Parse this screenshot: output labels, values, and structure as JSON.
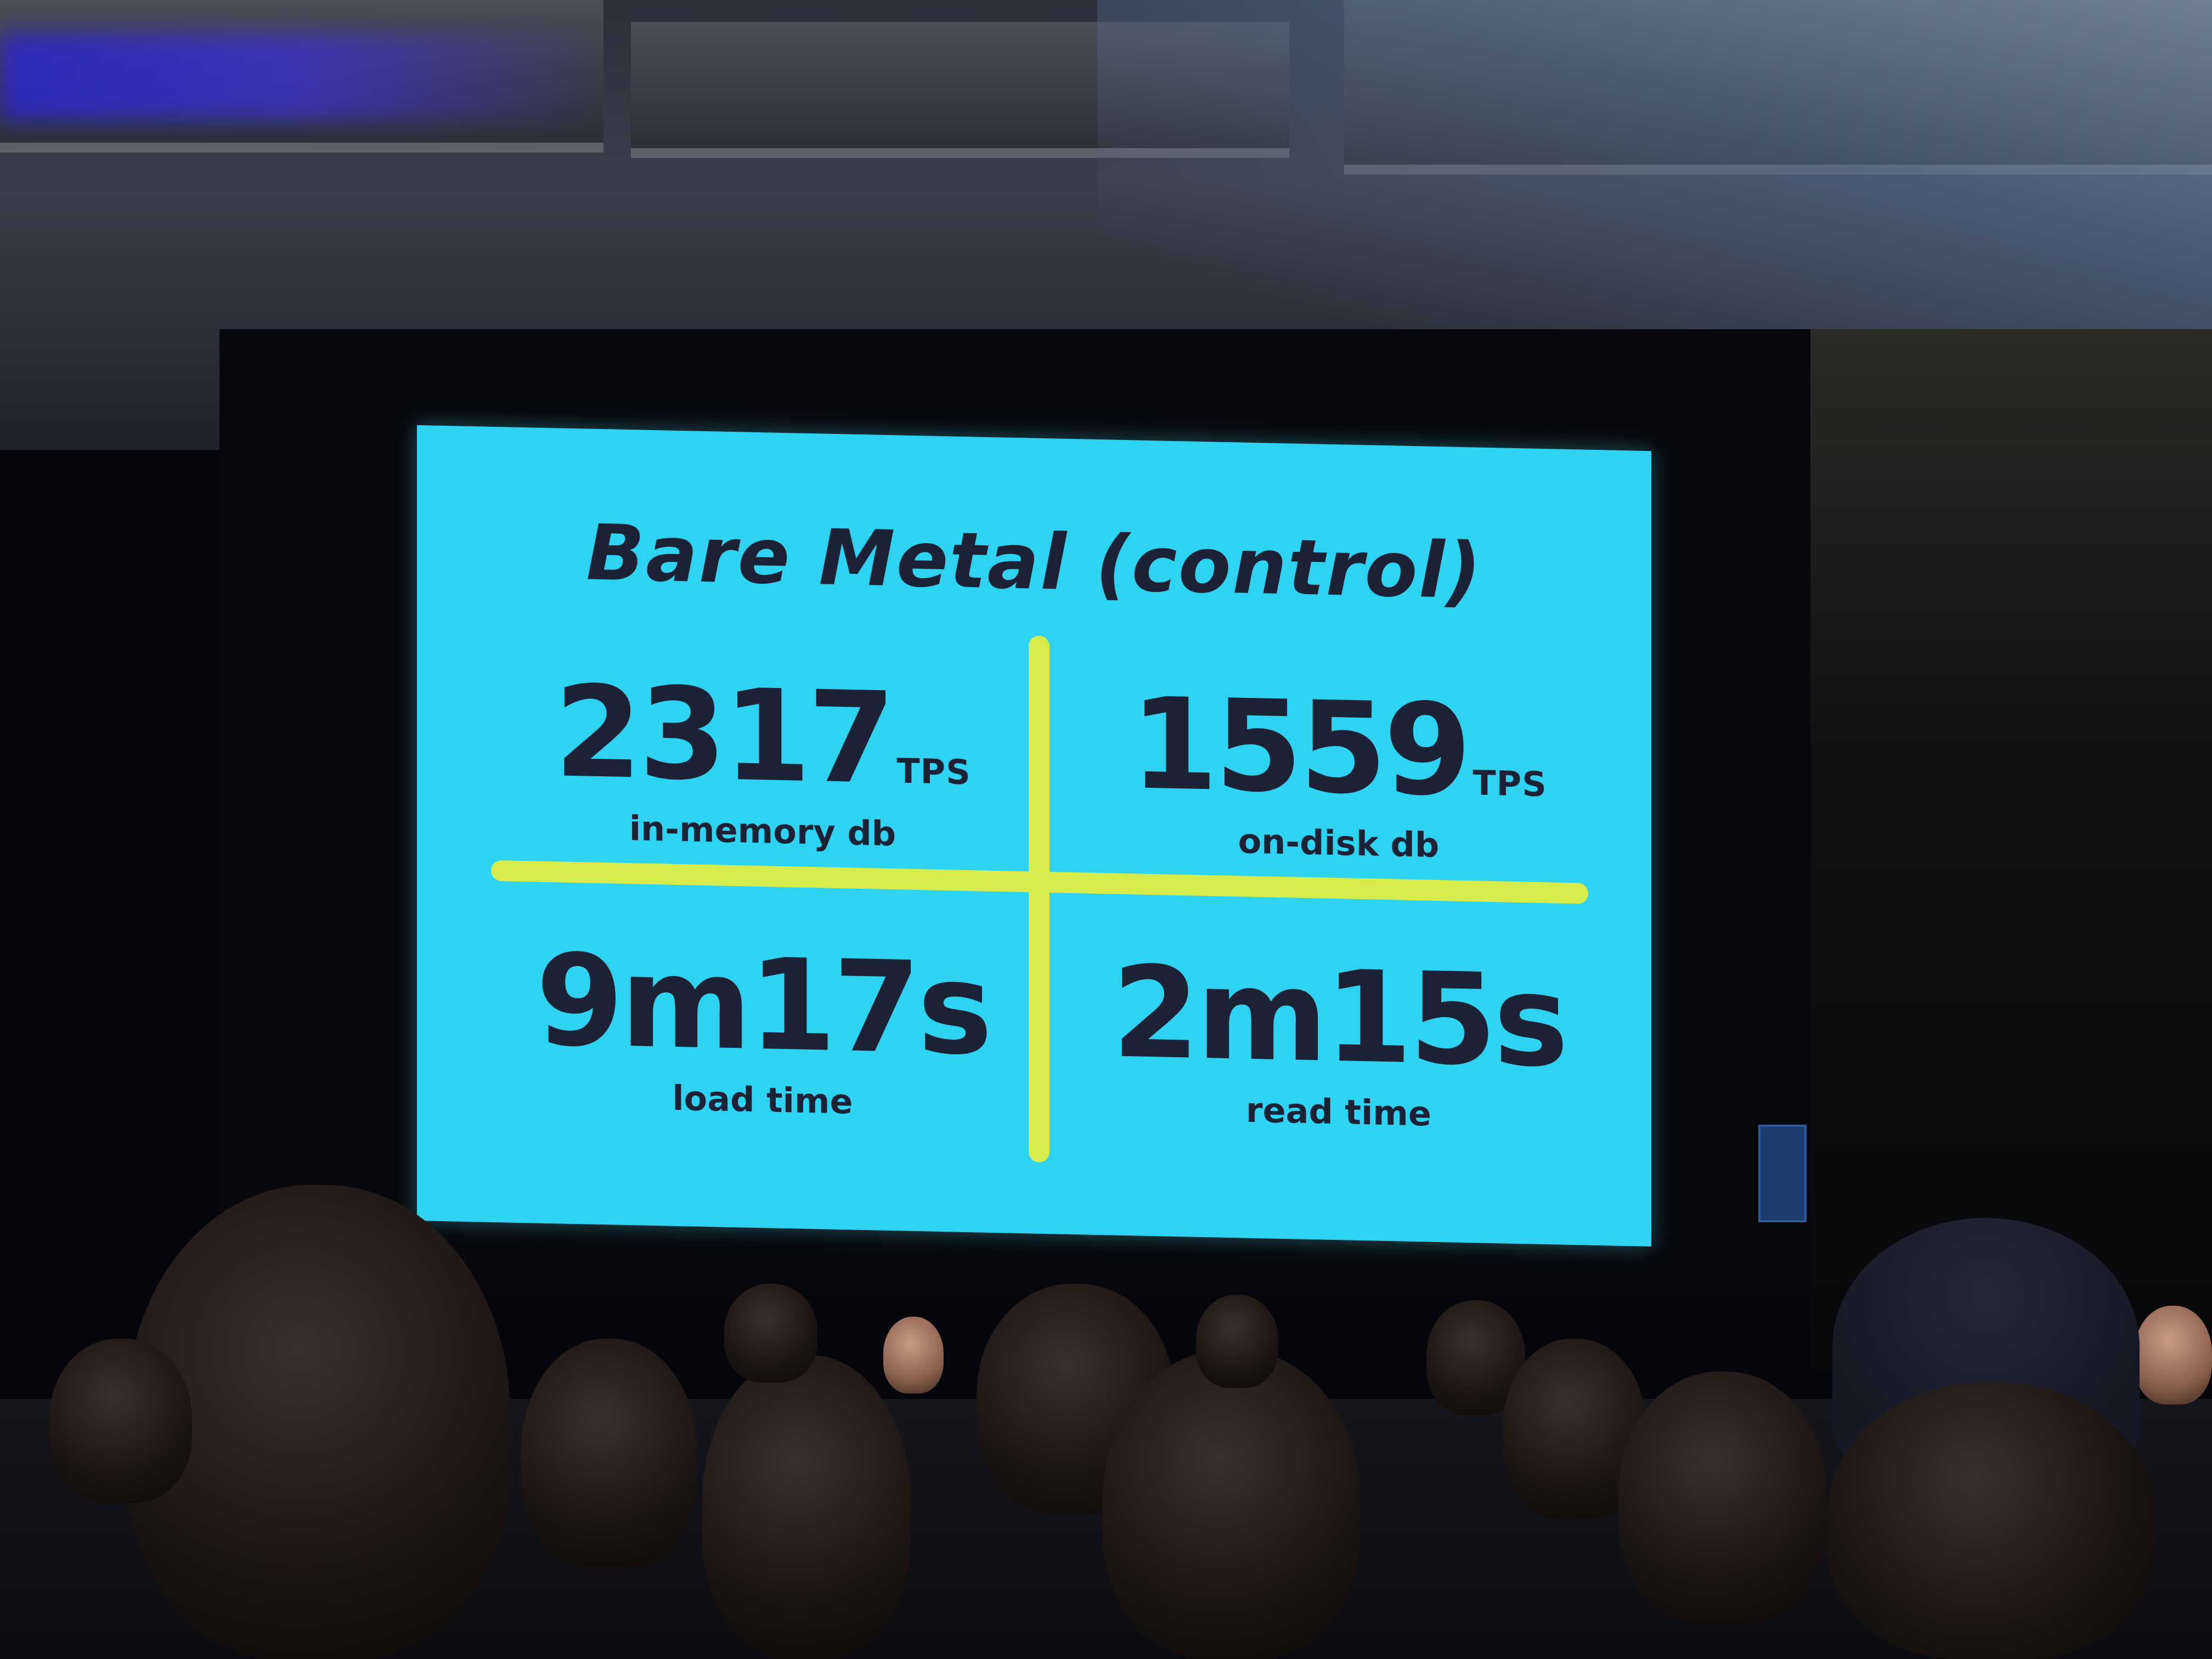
{
  "slide": {
    "title": "Bare Metal (control)",
    "metrics": [
      {
        "value": "2317",
        "unit": "TPS",
        "label": "in-memory db"
      },
      {
        "value": "1559",
        "unit": "TPS",
        "label": "on-disk db"
      },
      {
        "value": "9m17s",
        "unit": "",
        "label": "load time"
      },
      {
        "value": "2m15s",
        "unit": "",
        "label": "read time"
      }
    ]
  },
  "colors": {
    "slide_background": "#2fd3f2",
    "divider": "#d6ec4a",
    "text": "#1c2236"
  }
}
